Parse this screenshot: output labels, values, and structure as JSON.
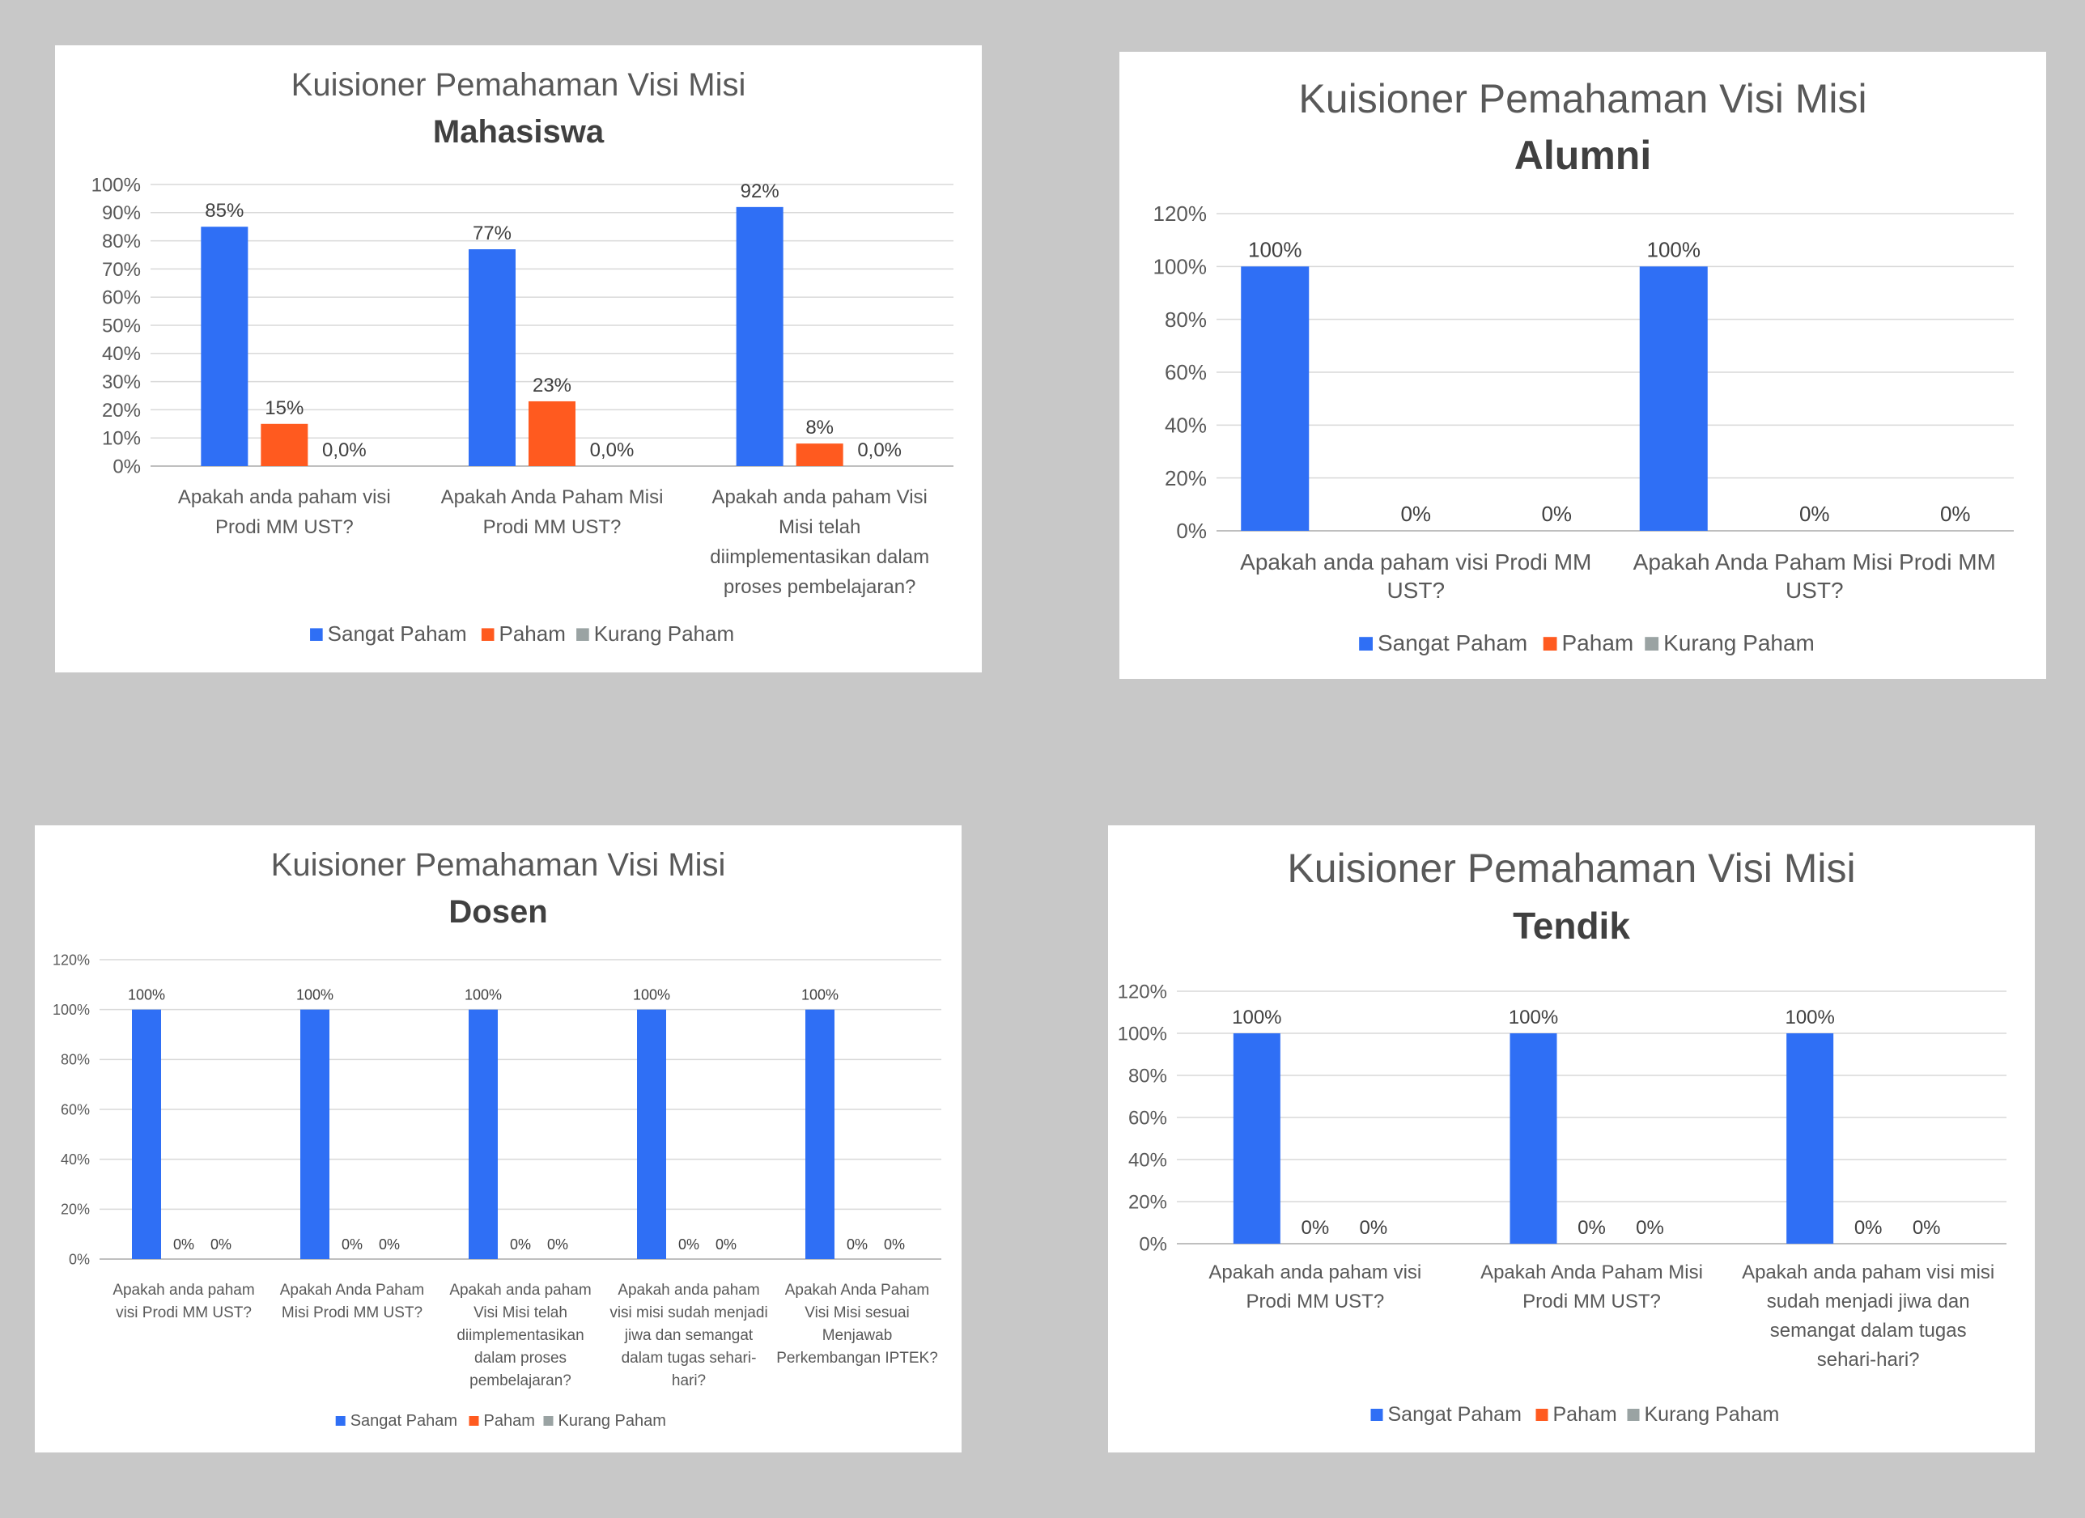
{
  "colors": {
    "sangat": "#2f6ff5",
    "paham": "#ff5a1f",
    "kurang": "#9aa3a3",
    "grid": "#d9d9d9",
    "axis": "#bfbfbf"
  },
  "chart_data": [
    {
      "type": "bar",
      "title": "Kuisioner Pemahaman Visi Misi",
      "subtitle": "Mahasiswa",
      "categories": [
        [
          "Apakah anda paham visi",
          "Prodi MM UST?"
        ],
        [
          "Apakah Anda Paham Misi",
          "Prodi MM UST?"
        ],
        [
          "Apakah anda paham Visi",
          "Misi telah",
          "diimplementasikan dalam",
          "proses pembelajaran?"
        ]
      ],
      "ylim": [
        0,
        100
      ],
      "yticks": [
        0,
        10,
        20,
        30,
        40,
        50,
        60,
        70,
        80,
        90,
        100
      ],
      "ytick_labels": [
        "0%",
        "10%",
        "20%",
        "30%",
        "40%",
        "50%",
        "60%",
        "70%",
        "80%",
        "90%",
        "100%"
      ],
      "series": [
        {
          "name": "Sangat Paham",
          "values": [
            85,
            77,
            92
          ],
          "labels": [
            "85%",
            "77%",
            "92%"
          ]
        },
        {
          "name": "Paham",
          "values": [
            15,
            23,
            8
          ],
          "labels": [
            "15%",
            "23%",
            "8%"
          ]
        },
        {
          "name": "Kurang Paham",
          "values": [
            0,
            0,
            0
          ],
          "labels": [
            "0,0%",
            "0,0%",
            "0,0%"
          ]
        }
      ],
      "grid": true,
      "legend": "bottom"
    },
    {
      "type": "bar",
      "title": "Kuisioner Pemahaman Visi Misi",
      "subtitle": "Alumni",
      "categories": [
        [
          "Apakah anda paham visi Prodi MM",
          "UST?"
        ],
        [
          "Apakah Anda Paham Misi Prodi MM",
          "UST?"
        ]
      ],
      "ylim": [
        0,
        120
      ],
      "yticks": [
        0,
        20,
        40,
        60,
        80,
        100,
        120
      ],
      "ytick_labels": [
        "0%",
        "20%",
        "40%",
        "60%",
        "80%",
        "100%",
        "120%"
      ],
      "series": [
        {
          "name": "Sangat Paham",
          "values": [
            100,
            100
          ],
          "labels": [
            "100%",
            "100%"
          ]
        },
        {
          "name": "Paham",
          "values": [
            0,
            0
          ],
          "labels": [
            "0%",
            "0%"
          ]
        },
        {
          "name": "Kurang Paham",
          "values": [
            0,
            0
          ],
          "labels": [
            "0%",
            "0%"
          ]
        }
      ],
      "grid": true,
      "legend": "bottom"
    },
    {
      "type": "bar",
      "title": "Kuisioner Pemahaman Visi Misi",
      "subtitle": "Dosen",
      "categories": [
        [
          "Apakah anda paham",
          "visi Prodi MM UST?"
        ],
        [
          "Apakah Anda Paham",
          "Misi Prodi MM UST?"
        ],
        [
          "Apakah anda paham",
          "Visi Misi telah",
          "diimplementasikan",
          "dalam proses",
          "pembelajaran?"
        ],
        [
          "Apakah anda paham",
          "visi misi sudah menjadi",
          "jiwa dan semangat",
          "dalam tugas sehari-",
          "hari?"
        ],
        [
          "Apakah Anda Paham",
          "Visi Misi sesuai",
          "Menjawab",
          "Perkembangan IPTEK?"
        ]
      ],
      "ylim": [
        0,
        120
      ],
      "yticks": [
        0,
        20,
        40,
        60,
        80,
        100,
        120
      ],
      "ytick_labels": [
        "0%",
        "20%",
        "40%",
        "60%",
        "80%",
        "100%",
        "120%"
      ],
      "series": [
        {
          "name": "Sangat Paham",
          "values": [
            100,
            100,
            100,
            100,
            100
          ],
          "labels": [
            "100%",
            "100%",
            "100%",
            "100%",
            "100%"
          ]
        },
        {
          "name": "Paham",
          "values": [
            0,
            0,
            0,
            0,
            0
          ],
          "labels": [
            "0%",
            "0%",
            "0%",
            "0%",
            "0%"
          ]
        },
        {
          "name": "Kurang Paham",
          "values": [
            0,
            0,
            0,
            0,
            0
          ],
          "labels": [
            "0%",
            "0%",
            "0%",
            "0%",
            "0%"
          ]
        }
      ],
      "grid": true,
      "legend": "bottom"
    },
    {
      "type": "bar",
      "title": "Kuisioner Pemahaman Visi Misi",
      "subtitle": "Tendik",
      "categories": [
        [
          "Apakah anda paham visi",
          "Prodi MM UST?"
        ],
        [
          "Apakah Anda Paham Misi",
          "Prodi MM UST?"
        ],
        [
          "Apakah anda paham visi misi",
          "sudah menjadi jiwa dan",
          "semangat dalam tugas",
          "sehari-hari?"
        ]
      ],
      "ylim": [
        0,
        120
      ],
      "yticks": [
        0,
        20,
        40,
        60,
        80,
        100,
        120
      ],
      "ytick_labels": [
        "0%",
        "20%",
        "40%",
        "60%",
        "80%",
        "100%",
        "120%"
      ],
      "series": [
        {
          "name": "Sangat Paham",
          "values": [
            100,
            100,
            100
          ],
          "labels": [
            "100%",
            "100%",
            "100%"
          ]
        },
        {
          "name": "Paham",
          "values": [
            0,
            0,
            0
          ],
          "labels": [
            "0%",
            "0%",
            "0%"
          ]
        },
        {
          "name": "Kurang Paham",
          "values": [
            0,
            0,
            0
          ],
          "labels": [
            "0%",
            "0%",
            "0%"
          ]
        }
      ],
      "grid": true,
      "legend": "bottom"
    }
  ]
}
